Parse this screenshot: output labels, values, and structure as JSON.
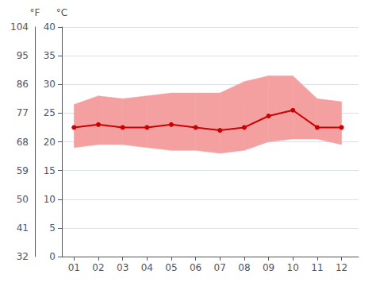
{
  "chart_data": {
    "type": "line",
    "x": [
      1,
      2,
      3,
      4,
      5,
      6,
      7,
      8,
      9,
      10,
      11,
      12
    ],
    "xlim": [
      0.5,
      12.7
    ],
    "xticks": [
      {
        "value": 1,
        "label": "01"
      },
      {
        "value": 2,
        "label": "02"
      },
      {
        "value": 3,
        "label": "03"
      },
      {
        "value": 4,
        "label": "04"
      },
      {
        "value": 5,
        "label": "05"
      },
      {
        "value": 6,
        "label": "06"
      },
      {
        "value": 7,
        "label": "07"
      },
      {
        "value": 8,
        "label": "08"
      },
      {
        "value": 9,
        "label": "09"
      },
      {
        "value": 10,
        "label": "10"
      },
      {
        "value": 11,
        "label": "11"
      },
      {
        "value": 12,
        "label": "12"
      }
    ],
    "ylabel": "°C",
    "ylim": [
      0,
      40
    ],
    "yticks": [
      0,
      5,
      10,
      15,
      20,
      25,
      30,
      35,
      40
    ],
    "y2label": "°F",
    "y2lim": [
      32,
      104
    ],
    "y2ticks": [
      32,
      41,
      50,
      59,
      68,
      77,
      86,
      95,
      104
    ],
    "grid": true,
    "series": [
      {
        "type": "area",
        "color": "#f5a0a0",
        "low": [
          19.0,
          19.5,
          19.5,
          19.0,
          18.5,
          18.5,
          18.0,
          18.5,
          20.0,
          20.5,
          20.5,
          19.5
        ],
        "high": [
          26.5,
          28.0,
          27.5,
          28.0,
          28.5,
          28.5,
          28.5,
          30.5,
          31.5,
          31.5,
          27.5,
          27.0
        ]
      },
      {
        "type": "line",
        "color": "#cc0000",
        "marker": "circle",
        "values": [
          22.5,
          23.0,
          22.5,
          22.5,
          23.0,
          22.5,
          22.0,
          22.5,
          24.5,
          25.5,
          22.5,
          22.5
        ]
      }
    ]
  }
}
